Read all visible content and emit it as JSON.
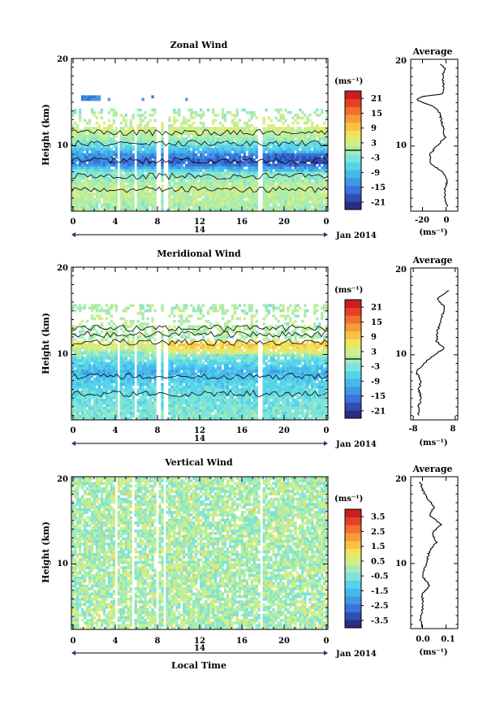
{
  "chart_data": [
    {
      "type": "heatmap",
      "title": "Zonal Wind",
      "ylabel": "Height (km)",
      "y_ticks": [
        "10",
        "20"
      ],
      "ylim": [
        2.5,
        20
      ],
      "x_ticks": [
        "0",
        "4",
        "8",
        "12",
        "16",
        "20",
        "0"
      ],
      "xlim": [
        0,
        24
      ],
      "date_label": "14",
      "month_label": "Jan 2014",
      "colorbar": {
        "unit": "(ms⁻¹)",
        "ticks": [
          "21",
          "15",
          "9",
          "3",
          "-3",
          "-9",
          "-15",
          "-21"
        ],
        "range": [
          -24,
          24
        ],
        "colors": [
          "#2b2c83",
          "#2f4fb6",
          "#3b74d6",
          "#3f98e6",
          "#46b8ec",
          "#56d3ea",
          "#7ee3d8",
          "#a9ecb0",
          "#d4ee86",
          "#f1e35b",
          "#f8c246",
          "#f79b37",
          "#f1702c",
          "#e64128",
          "#c81f24"
        ]
      },
      "data_gaps_hours": [
        [
          4.2,
          4.6
        ],
        [
          5.8,
          6.2
        ],
        [
          8.0,
          8.3
        ],
        [
          8.7,
          9.0
        ],
        [
          17.5,
          17.8
        ]
      ],
      "approx_profile_by_height": {
        "height_km": [
          3,
          5,
          7,
          8,
          9,
          10,
          11,
          12,
          14,
          15.5
        ],
        "wind_ms": [
          0,
          2,
          -3,
          -15,
          -12,
          -5,
          1,
          3,
          0,
          -15
        ]
      },
      "average": {
        "title": "Average",
        "xlabel": "(ms⁻¹)",
        "x_ticks": [
          "-20",
          "0"
        ],
        "xlim": [
          -30,
          10
        ],
        "height_km": [
          3,
          4,
          5,
          6,
          7,
          8,
          9,
          10,
          11,
          12,
          13,
          14,
          14.5,
          15,
          15.3,
          15.7,
          16,
          17,
          18,
          19,
          19.5
        ],
        "wind_ms": [
          1,
          -1,
          -1,
          1,
          -3,
          -13,
          -14,
          -8,
          -1,
          -2,
          -4,
          -6,
          -10,
          -19,
          -25,
          -21,
          -3,
          -2,
          -3,
          -1,
          -6
        ]
      }
    },
    {
      "type": "heatmap",
      "title": "Meridional Wind",
      "ylabel": "Height (km)",
      "y_ticks": [
        "10",
        "20"
      ],
      "ylim": [
        2.5,
        20
      ],
      "x_ticks": [
        "0",
        "4",
        "8",
        "12",
        "16",
        "20",
        "0"
      ],
      "xlim": [
        0,
        24
      ],
      "date_label": "14",
      "month_label": "Jan 2014",
      "colorbar": {
        "unit": "(ms⁻¹)",
        "ticks": [
          "21",
          "15",
          "9",
          "3",
          "-3",
          "-9",
          "-15",
          "-21"
        ],
        "range": [
          -24,
          24
        ],
        "colors": [
          "#2b2c83",
          "#2f4fb6",
          "#3b74d6",
          "#3f98e6",
          "#46b8ec",
          "#56d3ea",
          "#7ee3d8",
          "#a9ecb0",
          "#d4ee86",
          "#f1e35b",
          "#f8c246",
          "#f79b37",
          "#f1702c",
          "#e64128",
          "#c81f24"
        ]
      },
      "data_gaps_hours": [
        [
          4.2,
          4.6
        ],
        [
          5.8,
          6.2
        ],
        [
          8.0,
          8.3
        ],
        [
          8.7,
          9.0
        ],
        [
          17.5,
          17.8
        ]
      ],
      "approx_profile_by_height": {
        "height_km": [
          3,
          5,
          7,
          8,
          9,
          10,
          11,
          12,
          14,
          15.5
        ],
        "wind_ms": [
          -3,
          -4,
          -7,
          -10,
          -6,
          -2,
          5,
          0,
          1,
          0
        ]
      },
      "average": {
        "title": "Average",
        "xlabel": "(ms⁻¹)",
        "x_ticks": [
          "-8",
          "8"
        ],
        "xlim": [
          -9,
          9
        ],
        "height_km": [
          3,
          4,
          5,
          6,
          7,
          8,
          9,
          9.5,
          10,
          10.8,
          11.5,
          12.5,
          13.5,
          14.5,
          15.5,
          16.5,
          17.5
        ],
        "wind_ms": [
          -6,
          -6,
          -5,
          -6,
          -5,
          -7,
          -4,
          -2,
          0,
          4,
          1,
          1,
          2,
          3,
          4,
          1,
          6
        ]
      }
    },
    {
      "type": "heatmap",
      "title": "Vertical Wind",
      "ylabel": "Height (km)",
      "y_ticks": [
        "10",
        "20"
      ],
      "ylim": [
        2.5,
        20
      ],
      "x_ticks": [
        "0",
        "4",
        "8",
        "12",
        "16",
        "20",
        "0"
      ],
      "xlim": [
        0,
        24
      ],
      "date_label": "14",
      "month_label": "Jan 2014",
      "xlabel": "Local Time",
      "colorbar": {
        "unit": "(ms⁻¹)",
        "ticks": [
          "3.5",
          "2.5",
          "1.5",
          "0.5",
          "-0.5",
          "-1.5",
          "-2.5",
          "-3.5"
        ],
        "range": [
          -4,
          4
        ],
        "colors": [
          "#2b2c83",
          "#2f4fb6",
          "#3b74d6",
          "#3f98e6",
          "#46b8ec",
          "#56d3ea",
          "#7ee3d8",
          "#a9ecb0",
          "#d4ee86",
          "#f1e35b",
          "#f8c246",
          "#f79b37",
          "#f1702c",
          "#e64128",
          "#c81f24"
        ]
      },
      "data_gaps_hours": [
        [
          4.0,
          4.3
        ],
        [
          5.6,
          5.9
        ],
        [
          7.9,
          8.2
        ],
        [
          8.6,
          8.9
        ],
        [
          17.6,
          17.9
        ]
      ],
      "average": {
        "title": "Average",
        "xlabel": "(ms⁻¹)",
        "x_ticks": [
          "0.0",
          "0.1"
        ],
        "xlim": [
          -0.05,
          0.15
        ],
        "height_km": [
          2.6,
          3.5,
          4.5,
          5.5,
          6.5,
          7.5,
          8.5,
          9.5,
          10.5,
          11.5,
          12.5,
          13.5,
          14.5,
          15.5,
          16.5,
          17.5,
          18.5,
          19.5
        ],
        "wind_ms": [
          0.0,
          -0.01,
          0.0,
          0.0,
          0.0,
          0.03,
          0.0,
          0.01,
          0.02,
          0.03,
          0.06,
          0.04,
          0.08,
          0.03,
          0.05,
          0.02,
          0.0,
          -0.01
        ]
      }
    }
  ]
}
